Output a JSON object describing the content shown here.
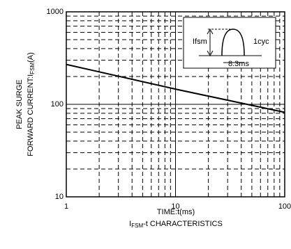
{
  "chart_data": {
    "type": "line",
    "log_x": true,
    "log_y": true,
    "grid": true,
    "minor_grid": true,
    "x": [
      1,
      10,
      100
    ],
    "series": [
      {
        "color": "#000000",
        "values": [
          270,
          146,
          82
        ]
      }
    ],
    "xlim": [
      1,
      100
    ],
    "xticks": [
      1,
      10,
      100
    ],
    "ylim": [
      10,
      1000
    ],
    "yticks": [
      10,
      100,
      1000
    ],
    "ylabel": [
      "PEAK SURGE",
      "FORWARD CURRENT:I",
      "FSM",
      "(A)"
    ],
    "xlabel": "TIME:t(ms)",
    "caption": [
      "I",
      "FSM",
      "-t CHARACTERISTICS"
    ],
    "annotations": [
      "Ifsm",
      "1cyc",
      "8.3ms"
    ]
  }
}
